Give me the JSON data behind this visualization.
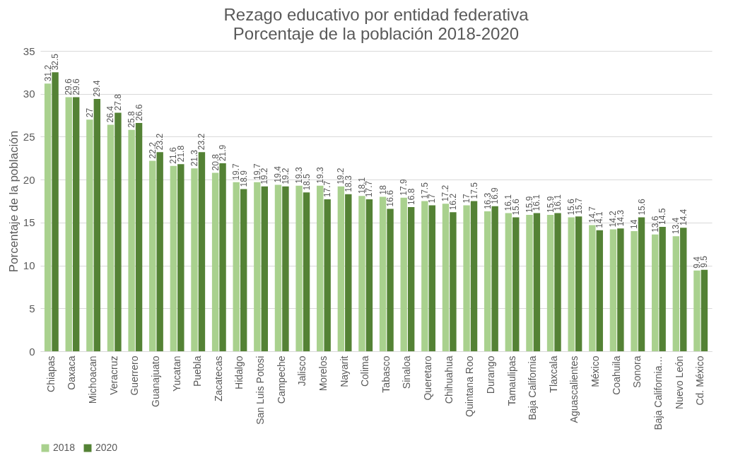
{
  "chart_data": {
    "type": "bar",
    "title": "Rezago educativo por entidad federativa",
    "subtitle": "Porcentaje de la población 2018-2020",
    "ylabel": "Porcentaje de la población",
    "categories": [
      "Chiapas",
      "Oaxaca",
      "Michoacan",
      "Veracruz",
      "Guerrero",
      "Guanajuato",
      "Yucatan",
      "Puebla",
      "Zacatecas",
      "Hidalgo",
      "San Luis Potosi",
      "Campeche",
      "Jalisco",
      "Morelos",
      "Nayarit",
      "Colima",
      "Tabasco",
      "Sinaloa",
      "Queretaro",
      "Chihuahua",
      "Quintana Roo",
      "Durango",
      "Tamaulipas",
      "Baja California",
      "Tlaxcala",
      "Aguascalientes",
      "México",
      "Coahuila",
      "Sonora",
      "Baja California…",
      "Nuevo León",
      "Cd. México"
    ],
    "series": [
      {
        "name": "2018",
        "color": "#a9d18e",
        "values": [
          31.2,
          29.6,
          27,
          26.4,
          25.8,
          22.2,
          21.6,
          21.3,
          20.8,
          19.7,
          19.7,
          19.4,
          19.3,
          19.3,
          19.2,
          18.1,
          18,
          17.9,
          17.5,
          17.2,
          17,
          16.3,
          16.1,
          15.9,
          15.9,
          15.6,
          14.7,
          14.2,
          14,
          13.6,
          13.4,
          9.4
        ]
      },
      {
        "name": "2020",
        "color": "#548235",
        "values": [
          32.5,
          29.6,
          29.4,
          27.8,
          26.6,
          23.2,
          21.8,
          23.2,
          21.9,
          18.9,
          19.2,
          19.2,
          18.5,
          17.7,
          18.3,
          17.7,
          16.6,
          16.8,
          17,
          16.2,
          17.5,
          16.9,
          15.6,
          16.1,
          16.1,
          15.7,
          14.1,
          14.3,
          15.6,
          14.5,
          14.4,
          9.5
        ]
      }
    ],
    "ylim": [
      0,
      35
    ],
    "yticks": [
      0,
      5,
      10,
      15,
      20,
      25,
      30,
      35
    ],
    "grid": "y",
    "legend": "bottom",
    "data_labels": true
  }
}
